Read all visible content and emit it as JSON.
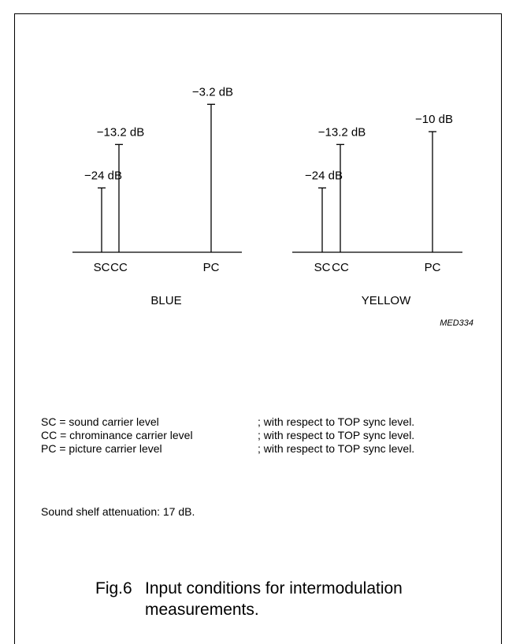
{
  "diagram": {
    "baseline_y_db": -40,
    "panels": [
      {
        "name": "BLUE",
        "carriers": [
          {
            "label": "SC",
            "level_db": -24,
            "value_label": "−24 dB"
          },
          {
            "label": "CC",
            "level_db": -13.2,
            "value_label": "−13.2 dB"
          },
          {
            "label": "PC",
            "level_db": -3.2,
            "value_label": "−3.2 dB"
          }
        ]
      },
      {
        "name": "YELLOW",
        "carriers": [
          {
            "label": "SC",
            "level_db": -24,
            "value_label": "−24 dB"
          },
          {
            "label": "CC",
            "level_db": -13.2,
            "value_label": "−13.2 dB"
          },
          {
            "label": "PC",
            "level_db": -10,
            "value_label": "−10 dB"
          }
        ]
      }
    ],
    "ref_code": "MED334"
  },
  "notes": [
    {
      "definition": "SC = sound carrier level",
      "reference": "; with respect to TOP sync level."
    },
    {
      "definition": "CC = chrominance carrier level",
      "reference": "; with respect to TOP sync level."
    },
    {
      "definition": "PC = picture carrier level",
      "reference": "; with respect to TOP sync level."
    }
  ],
  "shelf_note": "Sound shelf attenuation: 17 dB.",
  "caption": {
    "number": "Fig.6",
    "line1": "Input conditions for intermodulation",
    "line2": "measurements."
  }
}
